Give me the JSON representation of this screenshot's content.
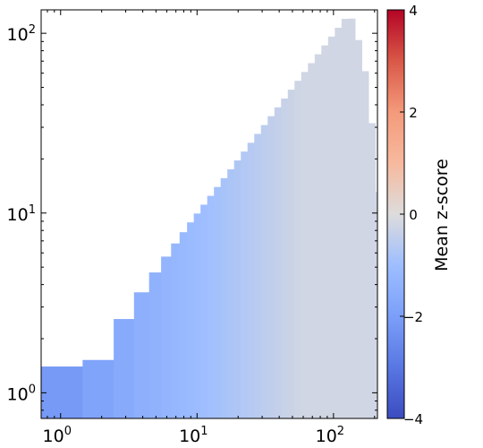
{
  "chart_data": {
    "type": "heatmap",
    "x_scale": "log",
    "y_scale": "log",
    "xlim": [
      0.72,
      210
    ],
    "ylim": [
      0.72,
      135
    ],
    "x_tick_labels": [
      {
        "value": 1,
        "base": "10",
        "exp": "0"
      },
      {
        "value": 10,
        "base": "10",
        "exp": "1"
      },
      {
        "value": 100,
        "base": "10",
        "exp": "2"
      }
    ],
    "y_tick_labels": [
      {
        "value": 1,
        "base": "10",
        "exp": "0"
      },
      {
        "value": 10,
        "base": "10",
        "exp": "1"
      },
      {
        "value": 100,
        "base": "10",
        "exp": "2"
      }
    ],
    "colorbar": {
      "label": "Mean z-score",
      "range": [
        -4,
        4
      ],
      "ticks": [
        4,
        2,
        0,
        -2,
        -4
      ],
      "tick_labels": [
        "4",
        "2",
        "0",
        "−2",
        "−4"
      ],
      "colormap": "coolwarm"
    },
    "value_trend": {
      "description_free": true,
      "low_x_value": -2.3,
      "high_x_value": -0.2
    },
    "grid": false
  }
}
